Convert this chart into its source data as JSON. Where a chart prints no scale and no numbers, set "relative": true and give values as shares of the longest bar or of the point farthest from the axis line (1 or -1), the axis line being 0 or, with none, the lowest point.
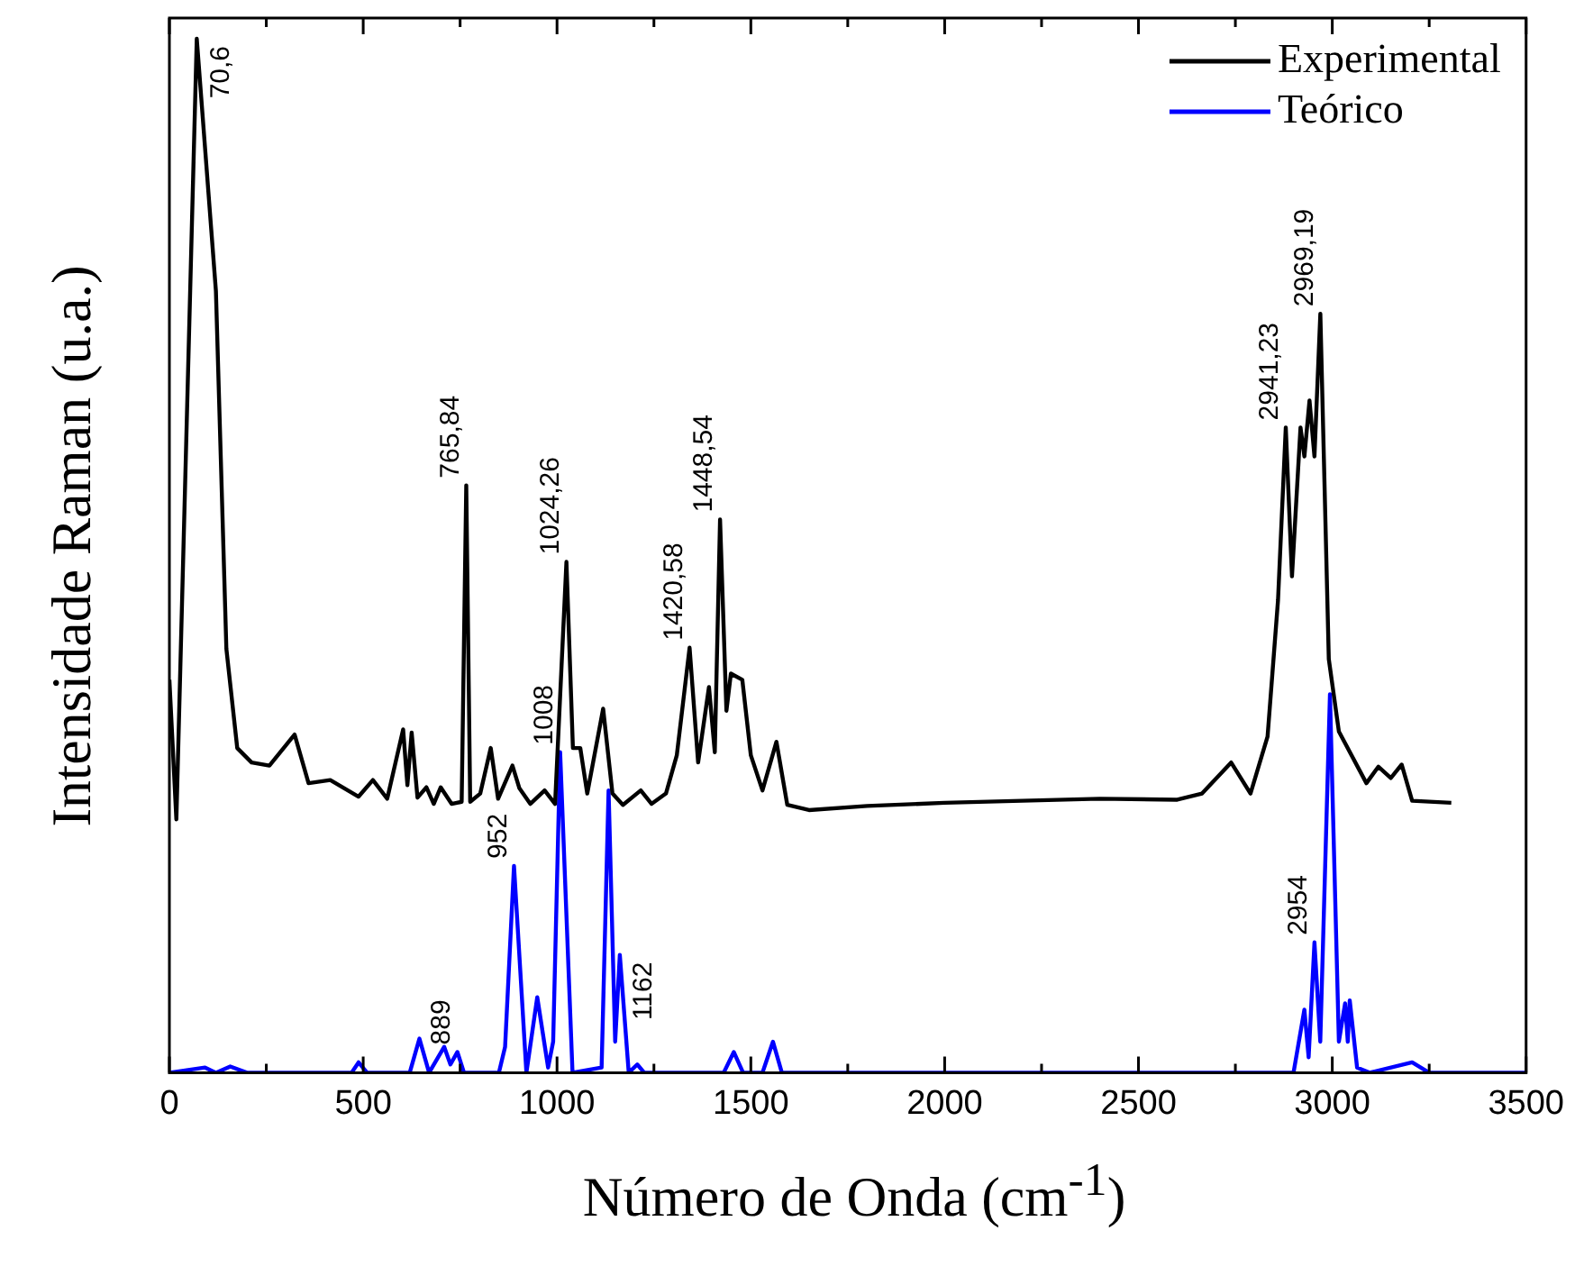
{
  "chart_data": {
    "type": "line",
    "relative": true,
    "xlabel": "Número de Onda (cm$^{-1}$)",
    "ylabel": "Intensidade Raman (u.a.)",
    "xlim": [
      0,
      3500
    ],
    "xticks": [
      0,
      {
        "value": 250,
        "label": null
      },
      500,
      {
        "value": 750,
        "label": null
      },
      1000,
      {
        "value": 1250,
        "label": null
      },
      1500,
      {
        "value": 1750,
        "label": null
      },
      2000,
      {
        "value": 2250,
        "label": null
      },
      2500,
      {
        "value": 2750,
        "label": null
      },
      3000,
      {
        "value": 3250,
        "label": null
      },
      3500
    ],
    "legend": "top right",
    "grid": false,
    "marker": "none",
    "line_style": "solid",
    "series": [
      {
        "name": "Experimental",
        "color": "#000000",
        "x": [
          0,
          18,
          70.6,
          120,
          147,
          175,
          212,
          258,
          323,
          359,
          415,
          488,
          525,
          562,
          603,
          614,
          625,
          640,
          663,
          682,
          700,
          728,
          754,
          765.84,
          776,
          802,
          829,
          848,
          885,
          903,
          931,
          968,
          995,
          1024.26,
          1041,
          1060,
          1078,
          1119,
          1143,
          1170,
          1216,
          1244,
          1281,
          1309,
          1342,
          1364,
          1392,
          1407,
          1420.58,
          1437,
          1448.54,
          1478,
          1500,
          1530,
          1566,
          1594,
          1650,
          1800,
          2000,
          2400,
          2600,
          2664,
          2739,
          2789,
          2833,
          2860,
          2880,
          2896,
          2918,
          2928,
          2941.23,
          2954,
          2969.19,
          2991,
          3017,
          3088,
          3119,
          3151,
          3179,
          3206,
          3307
        ],
        "values": [
          0.38,
          0.245,
          1.0,
          0.756,
          0.41,
          0.314,
          0.3,
          0.297,
          0.327,
          0.28,
          0.283,
          0.267,
          0.283,
          0.265,
          0.332,
          0.278,
          0.329,
          0.266,
          0.276,
          0.26,
          0.276,
          0.26,
          0.262,
          0.568,
          0.262,
          0.27,
          0.314,
          0.265,
          0.297,
          0.275,
          0.26,
          0.273,
          0.26,
          0.494,
          0.314,
          0.314,
          0.27,
          0.352,
          0.27,
          0.259,
          0.273,
          0.26,
          0.27,
          0.307,
          0.411,
          0.3,
          0.373,
          0.31,
          0.535,
          0.35,
          0.386,
          0.38,
          0.307,
          0.273,
          0.32,
          0.259,
          0.254,
          0.258,
          0.261,
          0.265,
          0.264,
          0.27,
          0.3,
          0.27,
          0.325,
          0.457,
          0.624,
          0.48,
          0.624,
          0.596,
          0.65,
          0.596,
          0.734,
          0.4,
          0.33,
          0.28,
          0.296,
          0.285,
          0.298,
          0.263,
          0.261
        ]
      },
      {
        "name": "Teórico",
        "color": "#0000ff",
        "x": [
          0,
          92,
          120,
          157,
          200,
          470,
          488,
          510,
          620,
          645,
          670,
          709,
          725,
          743,
          760,
          850,
          866,
          889,
          921,
          949,
          977,
          990,
          1008,
          1040,
          1115,
          1133,
          1150,
          1162,
          1185,
          1207,
          1225,
          1430,
          1456,
          1480,
          1530,
          1557,
          1580,
          2900,
          2928,
          2939,
          2954,
          2969,
          2994,
          3017,
          3033,
          3040,
          3045,
          3064,
          3096,
          3206,
          3250,
          3500
        ],
        "values": [
          0,
          0.005,
          0,
          0.006,
          0,
          0,
          0.01,
          0,
          0,
          0.033,
          0,
          0.025,
          0.008,
          0.02,
          0,
          0,
          0.025,
          0.2,
          0,
          0.073,
          0.005,
          0.03,
          0.31,
          0,
          0.005,
          0.273,
          0.03,
          0.114,
          0,
          0.008,
          0,
          0,
          0.02,
          0,
          0,
          0.03,
          0,
          0,
          0.061,
          0.015,
          0.126,
          0.03,
          0.366,
          0.03,
          0.067,
          0.03,
          0.07,
          0.005,
          0,
          0.01,
          0,
          0
        ]
      }
    ],
    "annotations": [
      {
        "text": "70,6",
        "x": 70.6,
        "y": 1.0
      },
      {
        "text": "765,84",
        "x": 765.84,
        "y": 0.568
      },
      {
        "text": "1024,26",
        "x": 1024.26,
        "y": 0.494
      },
      {
        "text": "1420,58",
        "x": 1342,
        "y": 0.411
      },
      {
        "text": "1448,54",
        "x": 1420.58,
        "y": 0.535
      },
      {
        "text": "2941,23",
        "x": 2880,
        "y": 0.624
      },
      {
        "text": "2969,19",
        "x": 2969.19,
        "y": 0.734
      },
      {
        "text": "889",
        "x": 743,
        "y": 0.02
      },
      {
        "text": "952",
        "x": 889,
        "y": 0.2
      },
      {
        "text": "1008",
        "x": 1008,
        "y": 0.31
      },
      {
        "text": "1162",
        "x": 1162,
        "y": 0.114
      },
      {
        "text": "2954",
        "x": 2954,
        "y": 0.126
      }
    ]
  }
}
